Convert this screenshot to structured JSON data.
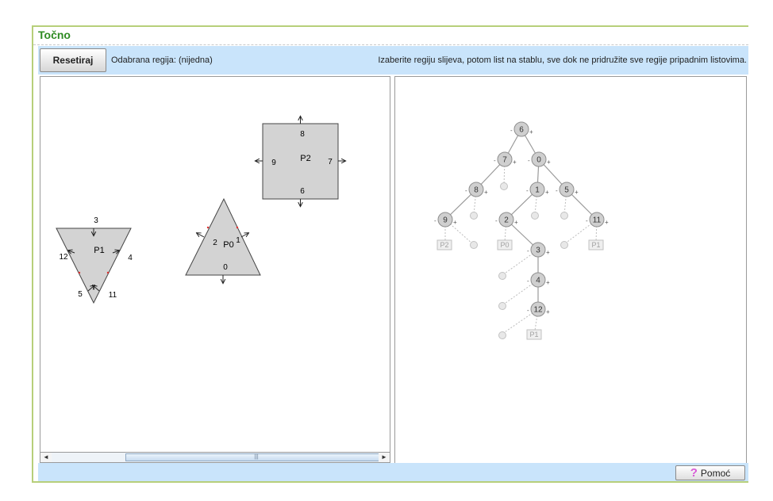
{
  "status": {
    "title": "Točno"
  },
  "toolbar": {
    "reset_label": "Resetiraj",
    "selected_region": "Odabrana regija: (nijedna)",
    "instruction": "Izaberite regiju slijeva, potom list na stablu, sve dok ne pridružite sve regije pripadnim listovima."
  },
  "regions": {
    "square": {
      "label": "P2",
      "top": "8",
      "left": "9",
      "right": "7",
      "bottom": "6"
    },
    "triangle_up": {
      "label": "P0",
      "left": "2",
      "right": "1",
      "bottom": "0"
    },
    "triangle_down": {
      "label": "P1",
      "top": "3",
      "left": "12",
      "right": "4",
      "bottom_left": "5",
      "bottom_right": "11"
    }
  },
  "tree": {
    "nodes": {
      "n6": "6",
      "n7": "7",
      "n0": "0",
      "n8": "8",
      "n1": "1",
      "n5": "5",
      "n9": "9",
      "n2": "2",
      "n11": "11",
      "n3": "3",
      "n4": "4",
      "n12": "12"
    },
    "leaves": {
      "l_p2": "P2",
      "l_p0": "P0",
      "l_p1a": "P1",
      "l_p1b": "P1"
    },
    "minus_sign": "-",
    "plus_sign": "+"
  },
  "scrollbar": {
    "left_arrow": "◄",
    "right_arrow": "►",
    "grip": "|||"
  },
  "footer": {
    "help_label": "Pomoć",
    "help_icon_glyph": "?"
  },
  "colors": {
    "accent_green": "#2e8b22",
    "toolbar_blue": "#c9e4fb",
    "shape_fill": "#d3d3d3"
  },
  "icons": {
    "help": "question-mark-icon"
  }
}
